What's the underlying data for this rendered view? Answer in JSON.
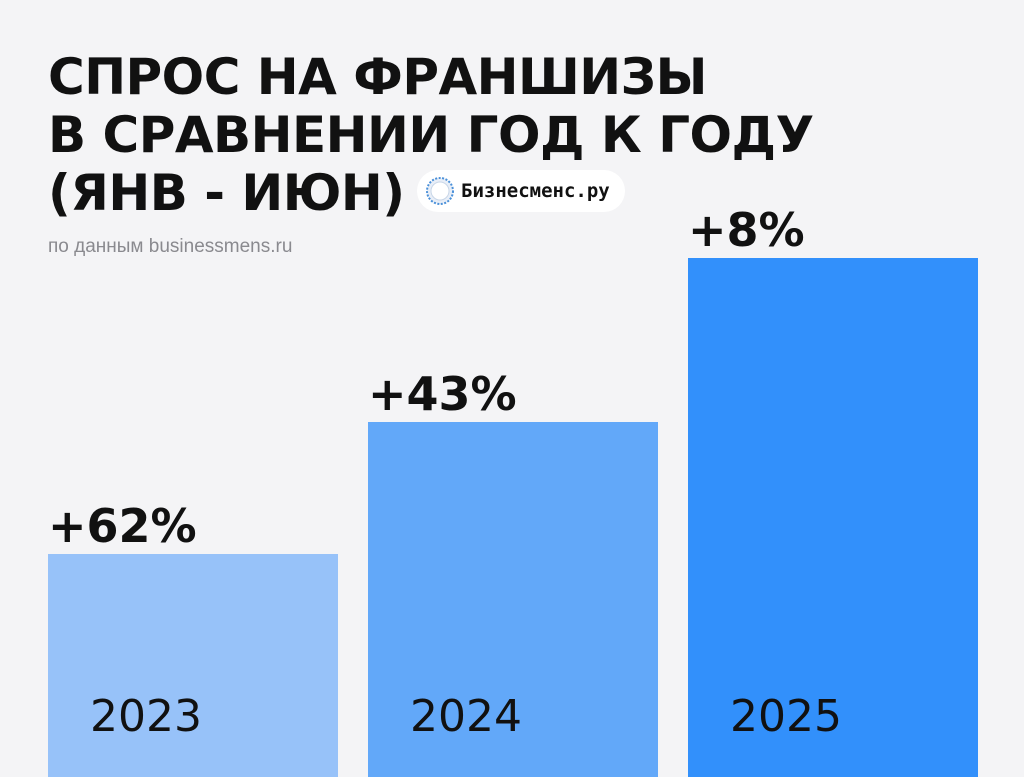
{
  "header": {
    "title_lines": [
      "СПРОС НА ФРАНШИЗЫ",
      "В СРАВНЕНИИ ГОД К ГОДУ",
      "(ЯНВ - ИЮН)"
    ],
    "brand_name": "Бизнесменс.ру",
    "source": "по данным businessmens.ru"
  },
  "colors": {
    "background": "#f4f4f6",
    "bars": [
      "#97c2f9",
      "#62a8f9",
      "#3290fb"
    ],
    "text": "#111111"
  },
  "icons": [
    "brand-logo-icon"
  ],
  "chart_data": {
    "type": "bar",
    "title": "СПРОС НА ФРАНШИЗЫ В СРАВНЕНИИ ГОД К ГОДУ (ЯНВ - ИЮН)",
    "categories": [
      "2023",
      "2024",
      "2025"
    ],
    "values": [
      62,
      43,
      8
    ],
    "value_labels": [
      "+62%",
      "+43%",
      "+8%"
    ],
    "unit": "%",
    "xlabel": "",
    "ylabel": "",
    "grid": false,
    "legend": "none"
  }
}
